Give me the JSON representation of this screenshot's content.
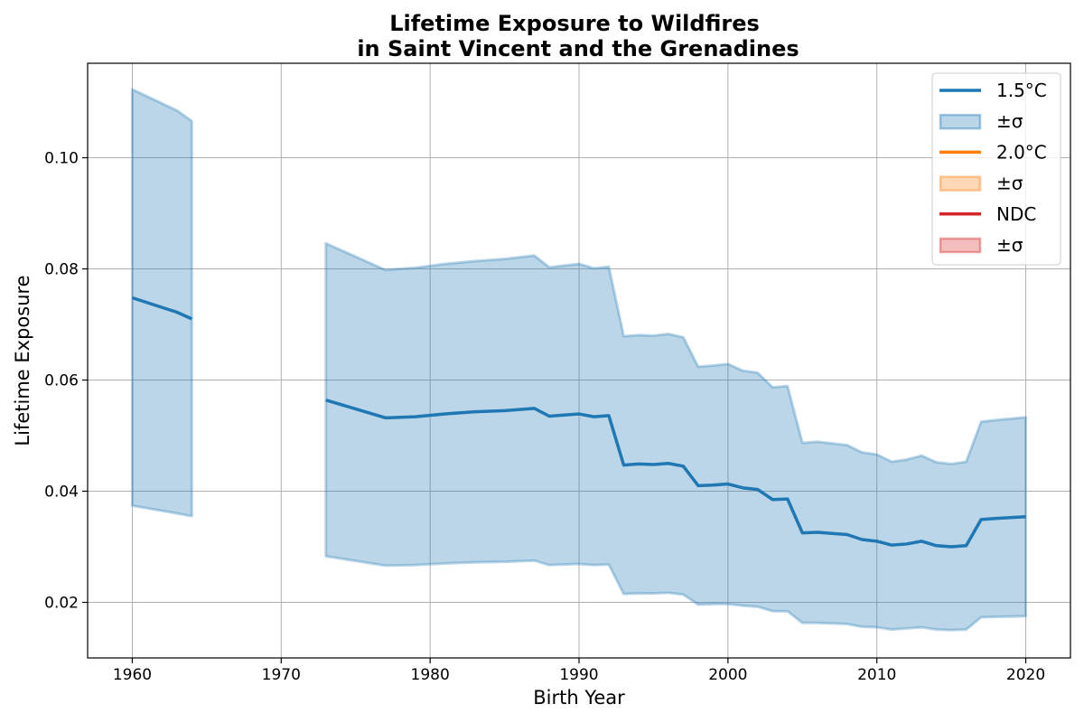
{
  "chart_data": {
    "type": "line",
    "title_line1": "Lifetime Exposure to Wildfires",
    "title_line2": "in Saint Vincent and the Grenadines",
    "xlabel": "Birth Year",
    "ylabel": "Lifetime Exposure",
    "xlim": [
      1957,
      2023
    ],
    "ylim": [
      0.01,
      0.117
    ],
    "xticks": [
      1960,
      1970,
      1980,
      1990,
      2000,
      2010,
      2020
    ],
    "yticks": [
      0.02,
      0.04,
      0.06,
      0.08,
      0.1
    ],
    "ytick_labels": [
      "0.02",
      "0.04",
      "0.06",
      "0.08",
      "0.10"
    ],
    "grid": true,
    "legend_position": "top-right",
    "legend": [
      {
        "label": "1.5°C",
        "kind": "line",
        "color": "#1f77b4"
      },
      {
        "label": "±σ",
        "kind": "patch",
        "color": "#1f77b4"
      },
      {
        "label": "2.0°C",
        "kind": "line",
        "color": "#ff7f0e"
      },
      {
        "label": "±σ",
        "kind": "patch",
        "color": "#ff7f0e"
      },
      {
        "label": "NDC",
        "kind": "line",
        "color": "#d62728"
      },
      {
        "label": "±σ",
        "kind": "patch",
        "color": "#d62728"
      }
    ],
    "series": [
      {
        "name": "1.5°C",
        "color": "#1f77b4",
        "segments": [
          {
            "x": [
              1960,
              1963,
              1964
            ],
            "mean": [
              0.0748,
              0.0722,
              0.071
            ],
            "upper": [
              0.1123,
              0.1085,
              0.1066
            ],
            "lower": [
              0.0374,
              0.036,
              0.0355
            ]
          },
          {
            "x": [
              1973,
              1977,
              1979,
              1981,
              1983,
              1985,
              1987,
              1988,
              1990,
              1991,
              1992,
              1993,
              1994,
              1995,
              1996,
              1997,
              1998,
              1999,
              2000,
              2001,
              2002,
              2003,
              2004,
              2005,
              2006,
              2007,
              2008,
              2009,
              2010,
              2011,
              2012,
              2013,
              2014,
              2015,
              2016,
              2017,
              2018,
              2020
            ],
            "mean": [
              0.0564,
              0.0532,
              0.0534,
              0.0539,
              0.0543,
              0.0545,
              0.0549,
              0.0535,
              0.0539,
              0.0534,
              0.0536,
              0.0447,
              0.0449,
              0.0448,
              0.045,
              0.0445,
              0.041,
              0.0411,
              0.0413,
              0.0406,
              0.0403,
              0.0385,
              0.0386,
              0.0325,
              0.0326,
              0.0324,
              0.0322,
              0.0313,
              0.031,
              0.0303,
              0.0305,
              0.031,
              0.0302,
              0.03,
              0.0302,
              0.0349,
              0.0351,
              0.0354
            ],
            "upper": [
              0.0846,
              0.0798,
              0.0802,
              0.0809,
              0.0814,
              0.0818,
              0.0824,
              0.0803,
              0.0809,
              0.0801,
              0.0804,
              0.0679,
              0.0681,
              0.068,
              0.0683,
              0.0677,
              0.0624,
              0.0626,
              0.0629,
              0.0617,
              0.0613,
              0.0587,
              0.0589,
              0.0487,
              0.0489,
              0.0486,
              0.0483,
              0.047,
              0.0466,
              0.0453,
              0.0457,
              0.0464,
              0.0452,
              0.0449,
              0.0453,
              0.0525,
              0.0528,
              0.0533
            ],
            "lower": [
              0.0283,
              0.0266,
              0.0267,
              0.027,
              0.0272,
              0.0273,
              0.0275,
              0.0267,
              0.0269,
              0.0267,
              0.0268,
              0.0215,
              0.0216,
              0.0216,
              0.0217,
              0.0214,
              0.0196,
              0.0197,
              0.0197,
              0.0194,
              0.0192,
              0.0184,
              0.0184,
              0.0163,
              0.0163,
              0.0162,
              0.0161,
              0.0156,
              0.0155,
              0.0151,
              0.0153,
              0.0155,
              0.0151,
              0.015,
              0.0151,
              0.0173,
              0.0174,
              0.0175
            ]
          }
        ]
      }
    ]
  }
}
